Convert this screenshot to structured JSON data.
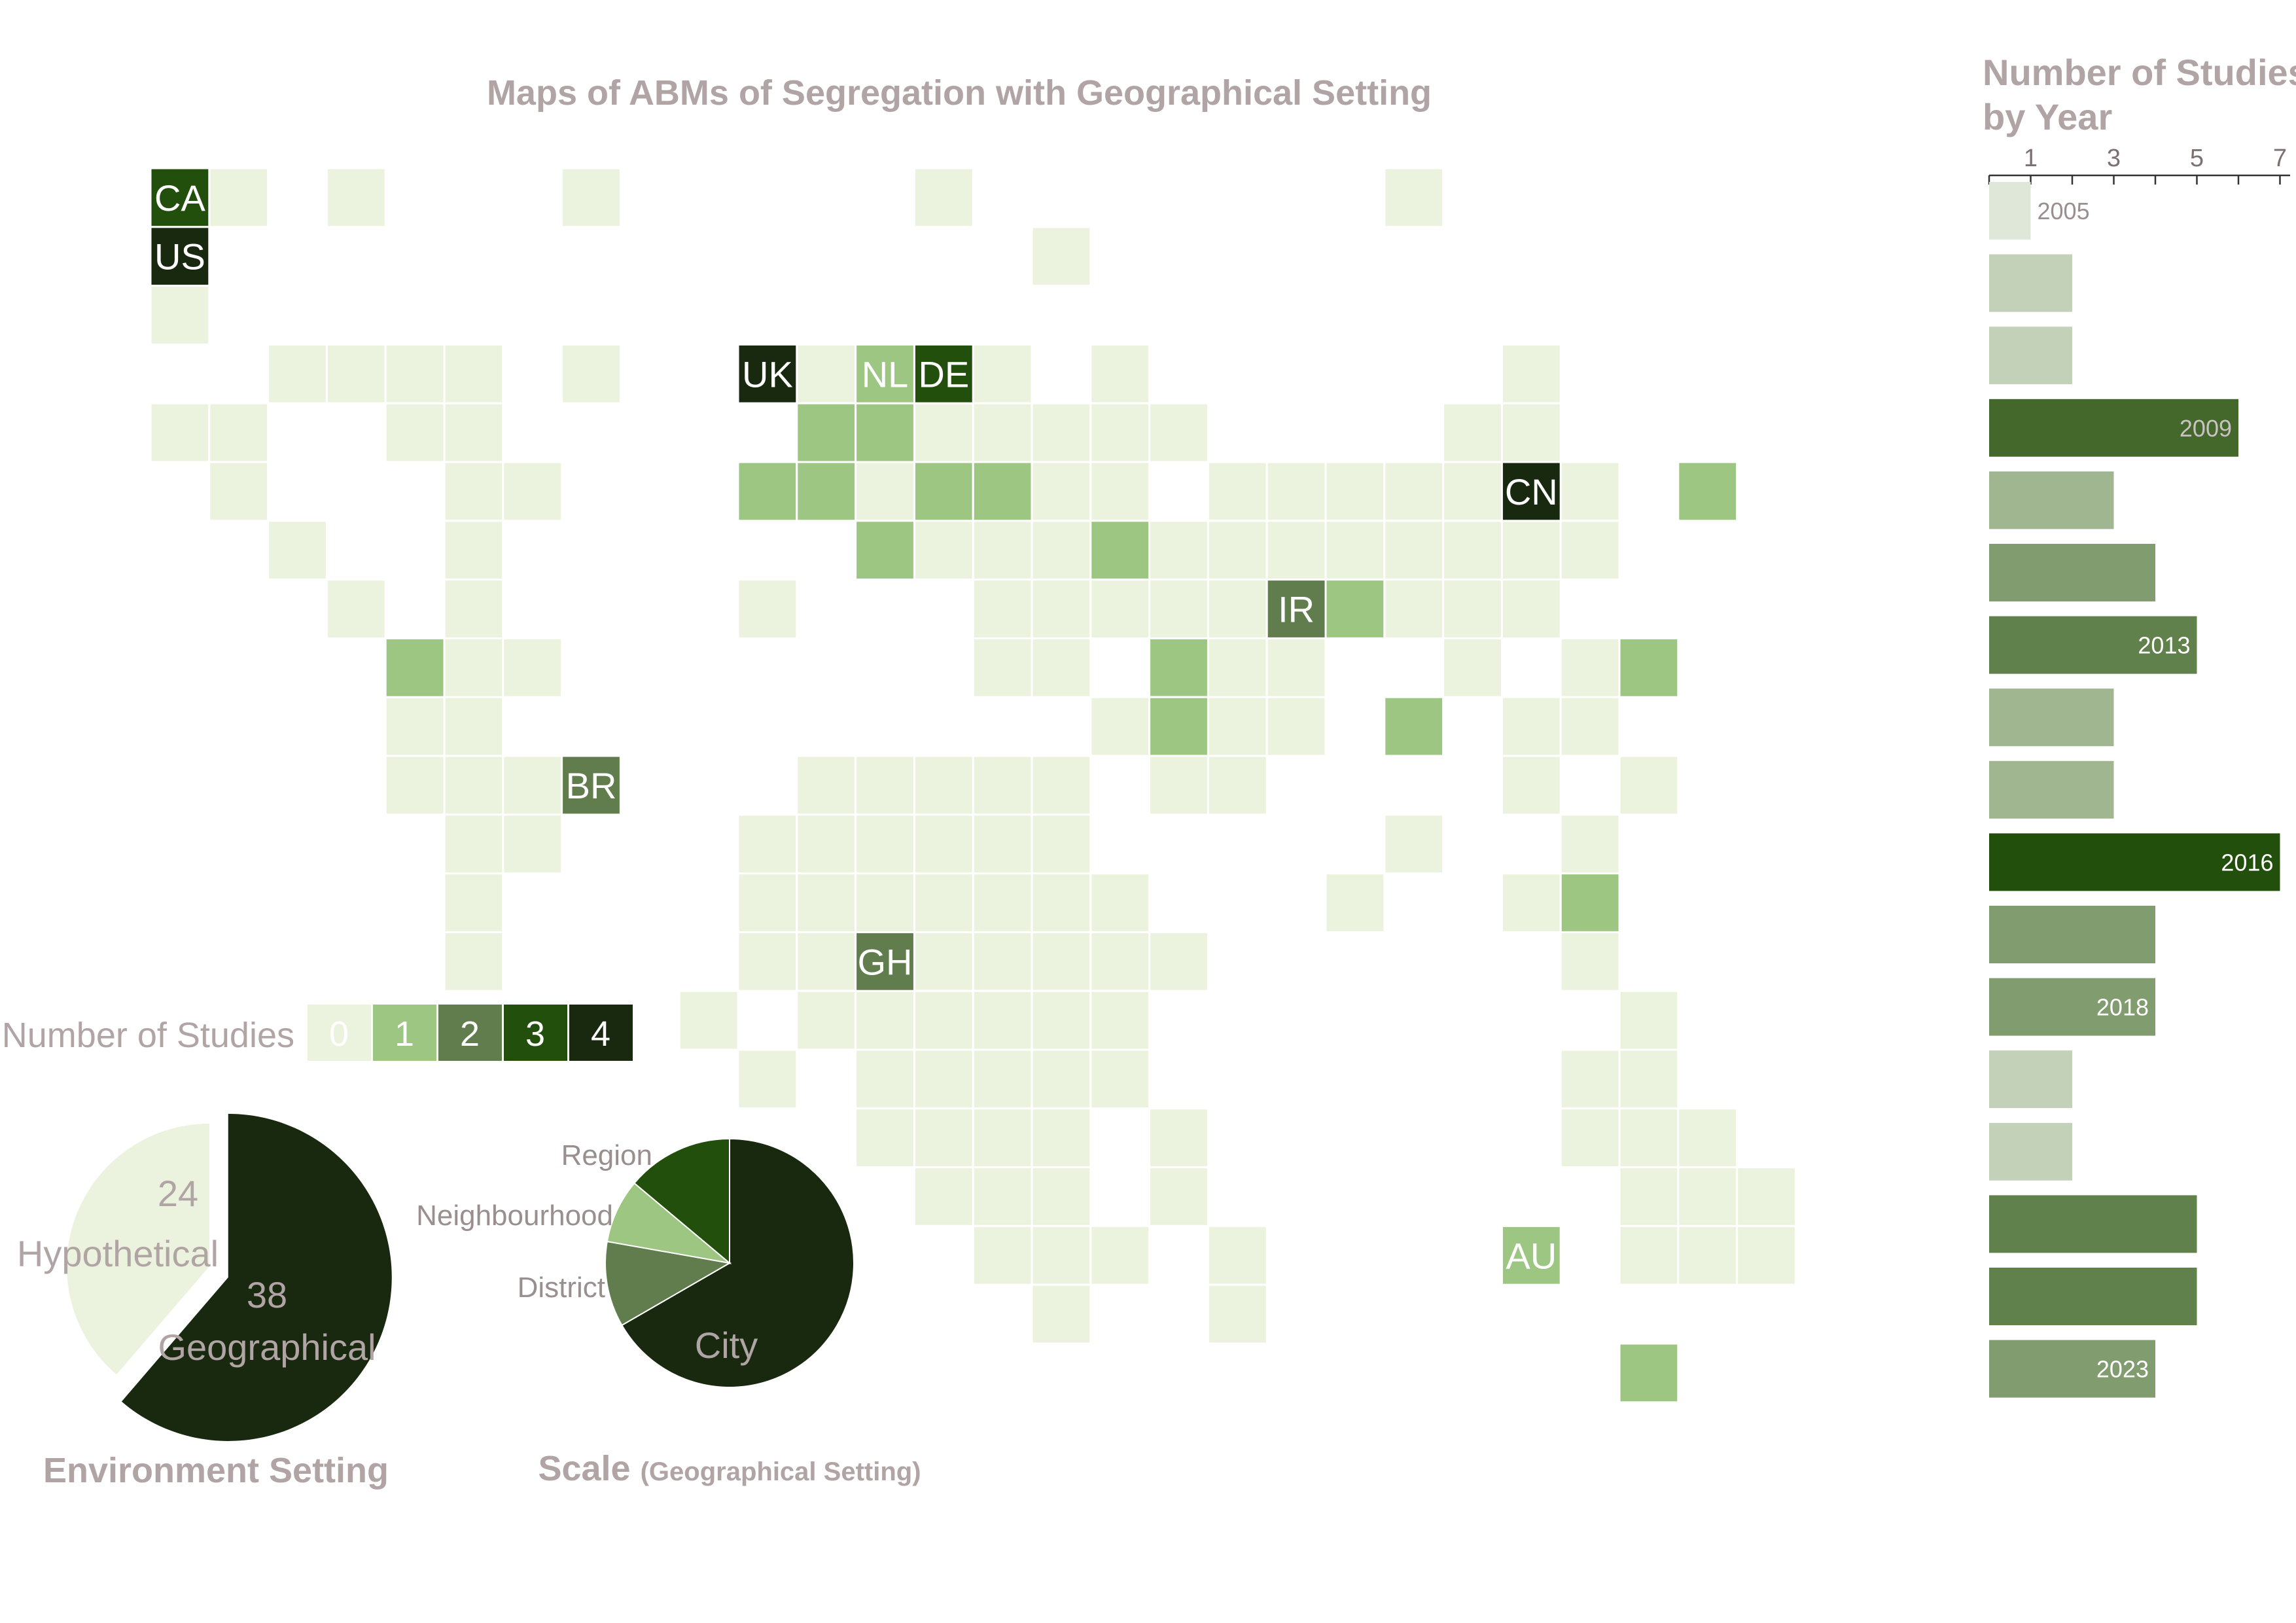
{
  "chart_data": [
    {
      "type": "heatmap",
      "title": "Maps of ABMs of Segregation with Geographical Setting",
      "legend": {
        "label": "Number of Studies",
        "levels": [
          0,
          1,
          2,
          3,
          4
        ],
        "colors": [
          "#ebf3de",
          "#9dc682",
          "#617d4d",
          "#234f0d",
          "#182910"
        ]
      },
      "background_cells": [
        [
          23,
          2
        ],
        [
          15,
          2
        ],
        [
          9,
          2
        ],
        [
          5,
          2
        ],
        [
          3,
          2
        ],
        [
          2,
          3
        ],
        [
          17,
          3
        ],
        [
          2,
          4
        ],
        [
          4,
          5
        ],
        [
          5,
          5
        ],
        [
          6,
          5
        ],
        [
          7,
          5
        ],
        [
          9,
          5
        ],
        [
          13,
          5
        ],
        [
          14,
          5
        ],
        [
          16,
          5
        ],
        [
          18,
          5
        ],
        [
          25,
          5
        ],
        [
          2,
          6
        ],
        [
          3,
          6
        ],
        [
          6,
          6
        ],
        [
          7,
          6
        ],
        [
          13,
          6
        ],
        [
          14,
          6
        ],
        [
          15,
          6
        ],
        [
          16,
          6
        ],
        [
          17,
          6
        ],
        [
          18,
          6
        ],
        [
          19,
          6
        ],
        [
          24,
          6
        ],
        [
          25,
          6
        ],
        [
          3,
          7
        ],
        [
          7,
          7
        ],
        [
          8,
          7
        ],
        [
          14,
          7
        ],
        [
          16,
          7
        ],
        [
          17,
          7
        ],
        [
          18,
          7
        ],
        [
          20,
          7
        ],
        [
          21,
          7
        ],
        [
          22,
          7
        ],
        [
          23,
          7
        ],
        [
          24,
          7
        ],
        [
          26,
          7
        ],
        [
          4,
          8
        ],
        [
          7,
          8
        ],
        [
          15,
          8
        ],
        [
          16,
          8
        ],
        [
          17,
          8
        ],
        [
          19,
          8
        ],
        [
          20,
          8
        ],
        [
          21,
          8
        ],
        [
          22,
          8
        ],
        [
          23,
          8
        ],
        [
          24,
          8
        ],
        [
          25,
          8
        ],
        [
          26,
          8
        ],
        [
          5,
          9
        ],
        [
          7,
          9
        ],
        [
          12,
          9
        ],
        [
          16,
          9
        ],
        [
          17,
          9
        ],
        [
          18,
          9
        ],
        [
          19,
          9
        ],
        [
          20,
          9
        ],
        [
          23,
          9
        ],
        [
          24,
          9
        ],
        [
          25,
          9
        ],
        [
          7,
          10
        ],
        [
          8,
          10
        ],
        [
          16,
          10
        ],
        [
          17,
          10
        ],
        [
          20,
          10
        ],
        [
          21,
          10
        ],
        [
          24,
          10
        ],
        [
          26,
          10
        ],
        [
          6,
          11
        ],
        [
          7,
          11
        ],
        [
          18,
          11
        ],
        [
          20,
          11
        ],
        [
          21,
          11
        ],
        [
          25,
          11
        ],
        [
          26,
          11
        ],
        [
          6,
          12
        ],
        [
          7,
          12
        ],
        [
          8,
          12
        ],
        [
          13,
          12
        ],
        [
          14,
          12
        ],
        [
          15,
          12
        ],
        [
          16,
          12
        ],
        [
          17,
          12
        ],
        [
          19,
          12
        ],
        [
          20,
          12
        ],
        [
          25,
          12
        ],
        [
          27,
          12
        ],
        [
          7,
          13
        ],
        [
          8,
          13
        ],
        [
          12,
          13
        ],
        [
          13,
          13
        ],
        [
          14,
          13
        ],
        [
          15,
          13
        ],
        [
          16,
          13
        ],
        [
          17,
          13
        ],
        [
          23,
          13
        ],
        [
          26,
          13
        ],
        [
          7,
          14
        ],
        [
          12,
          14
        ],
        [
          13,
          14
        ],
        [
          14,
          14
        ],
        [
          15,
          14
        ],
        [
          16,
          14
        ],
        [
          17,
          14
        ],
        [
          18,
          14
        ],
        [
          22,
          14
        ],
        [
          25,
          14
        ],
        [
          7,
          15
        ],
        [
          12,
          15
        ],
        [
          13,
          15
        ],
        [
          15,
          15
        ],
        [
          16,
          15
        ],
        [
          17,
          15
        ],
        [
          18,
          15
        ],
        [
          19,
          15
        ],
        [
          26,
          15
        ],
        [
          11,
          16
        ],
        [
          13,
          16
        ],
        [
          14,
          16
        ],
        [
          15,
          16
        ],
        [
          16,
          16
        ],
        [
          17,
          16
        ],
        [
          18,
          16
        ],
        [
          27,
          16
        ],
        [
          12,
          17
        ],
        [
          14,
          17
        ],
        [
          15,
          17
        ],
        [
          16,
          17
        ],
        [
          17,
          17
        ],
        [
          18,
          17
        ],
        [
          26,
          17
        ],
        [
          27,
          17
        ],
        [
          14,
          18
        ],
        [
          15,
          18
        ],
        [
          16,
          18
        ],
        [
          17,
          18
        ],
        [
          19,
          18
        ],
        [
          26,
          18
        ],
        [
          27,
          18
        ],
        [
          28,
          18
        ],
        [
          15,
          19
        ],
        [
          16,
          19
        ],
        [
          17,
          19
        ],
        [
          19,
          19
        ],
        [
          27,
          19
        ],
        [
          28,
          19
        ],
        [
          29,
          19
        ],
        [
          16,
          20
        ],
        [
          17,
          20
        ],
        [
          18,
          20
        ],
        [
          20,
          20
        ],
        [
          27,
          20
        ],
        [
          28,
          20
        ],
        [
          29,
          20
        ],
        [
          17,
          21
        ],
        [
          20,
          21
        ]
      ],
      "country_cells": [
        {
          "code": "CA",
          "col": 2,
          "row": 2,
          "value": 3
        },
        {
          "code": "US",
          "col": 2,
          "row": 3,
          "value": 4
        },
        {
          "code": "UK",
          "col": 12,
          "row": 5,
          "value": 4
        },
        {
          "code": "NL",
          "col": 14,
          "row": 5,
          "value": 1
        },
        {
          "code": "DE",
          "col": 15,
          "row": 5,
          "value": 3
        },
        {
          "code": "CN",
          "col": 25,
          "row": 7,
          "value": 4
        },
        {
          "code": "IR",
          "col": 21,
          "row": 9,
          "value": 2
        },
        {
          "code": "BR",
          "col": 9,
          "row": 12,
          "value": 2
        },
        {
          "code": "GH",
          "col": 14,
          "row": 15,
          "value": 2
        },
        {
          "code": "AU",
          "col": 25,
          "row": 20,
          "value": 1
        }
      ],
      "unlabeled_cells": [
        {
          "col": 13,
          "row": 6,
          "value": 1
        },
        {
          "col": 14,
          "row": 6,
          "value": 1
        },
        {
          "col": 12,
          "row": 7,
          "value": 1
        },
        {
          "col": 13,
          "row": 7,
          "value": 1
        },
        {
          "col": 15,
          "row": 7,
          "value": 1
        },
        {
          "col": 16,
          "row": 7,
          "value": 1
        },
        {
          "col": 28,
          "row": 7,
          "value": 1
        },
        {
          "col": 14,
          "row": 8,
          "value": 1
        },
        {
          "col": 18,
          "row": 8,
          "value": 1
        },
        {
          "col": 22,
          "row": 9,
          "value": 1
        },
        {
          "col": 6,
          "row": 10,
          "value": 1
        },
        {
          "col": 19,
          "row": 10,
          "value": 1
        },
        {
          "col": 27,
          "row": 10,
          "value": 1
        },
        {
          "col": 19,
          "row": 11,
          "value": 1
        },
        {
          "col": 23,
          "row": 11,
          "value": 1
        },
        {
          "col": 26,
          "row": 14,
          "value": 1
        },
        {
          "col": 27,
          "row": 22,
          "value": 1
        }
      ]
    },
    {
      "type": "bar",
      "title": "Number of Studies by Year",
      "title_lines": [
        "Number of Studies",
        "by Year"
      ],
      "xlim": [
        0,
        7
      ],
      "xticks": [
        1,
        3,
        5,
        7
      ],
      "values": [
        1,
        2,
        2,
        6,
        3,
        4,
        5,
        3,
        3,
        7,
        4,
        4,
        2,
        2,
        5,
        5,
        4
      ],
      "bar_labels": [
        "2005",
        "",
        "",
        "2009",
        "",
        "",
        "2013",
        "",
        "",
        "2016",
        "",
        "2018",
        "",
        "",
        "",
        "",
        "2023"
      ]
    },
    {
      "type": "pie",
      "title": "Environment Setting",
      "slices": [
        {
          "label": "Hypothetical",
          "value": 24,
          "color": "#ebf3de"
        },
        {
          "label": "Geographical",
          "value": 38,
          "color": "#182910"
        }
      ]
    },
    {
      "type": "pie",
      "title": "Scale",
      "title_suffix": "(Geographical Setting)",
      "slices": [
        {
          "label": "City",
          "value": 24,
          "color": "#182910"
        },
        {
          "label": "District",
          "value": 4,
          "color": "#617d4d"
        },
        {
          "label": "Neighbourhood",
          "value": 3,
          "color": "#9dc682"
        },
        {
          "label": "Region",
          "value": 5,
          "color": "#234f0d"
        }
      ]
    }
  ]
}
